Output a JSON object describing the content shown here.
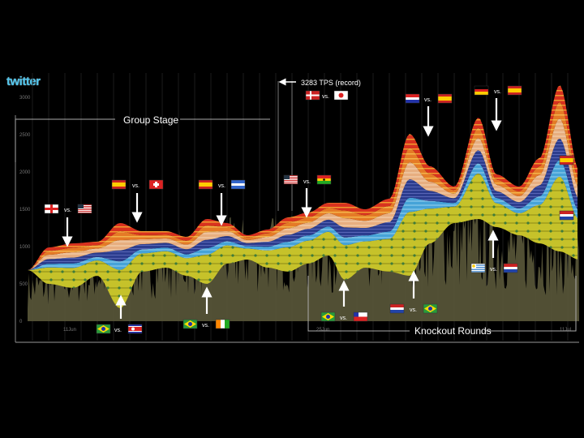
{
  "brand": {
    "logo_text": "twitter"
  },
  "chart_data": {
    "type": "area",
    "title": "",
    "subtitle": "",
    "xlabel": "",
    "ylabel": "",
    "y_ticks": [
      "3000",
      "2500",
      "2000",
      "1500",
      "1000",
      "500",
      "0"
    ],
    "x_ticks": [
      "11Jun",
      "25Jun",
      "11Jul"
    ],
    "ylim": [
      0,
      3000
    ],
    "grid": true,
    "legend": "none",
    "record_note": "3283 TPS (record)",
    "sections": [
      {
        "label": "Group Stage"
      },
      {
        "label": "Knockout Rounds"
      }
    ],
    "vs_label": "vs.",
    "matches": [
      {
        "team_a": "England",
        "team_b": "USA",
        "flag_a": "england",
        "flag_b": "usa"
      },
      {
        "team_a": "Spain",
        "team_b": "Switzerland",
        "flag_a": "spain",
        "flag_b": "switzerland"
      },
      {
        "team_a": "Brazil",
        "team_b": "North Korea",
        "flag_a": "brazil",
        "flag_b": "northkorea"
      },
      {
        "team_a": "Spain",
        "team_b": "Honduras",
        "flag_a": "spain",
        "flag_b": "honduras"
      },
      {
        "team_a": "Brazil",
        "team_b": "Ivory Coast",
        "flag_a": "brazil",
        "flag_b": "ivorycoast"
      },
      {
        "team_a": "Denmark",
        "team_b": "Japan",
        "flag_a": "denmark",
        "flag_b": "japan"
      },
      {
        "team_a": "USA",
        "team_b": "Ghana",
        "flag_a": "usa",
        "flag_b": "ghana"
      },
      {
        "team_a": "Brazil",
        "team_b": "Chile",
        "flag_a": "brazil",
        "flag_b": "chile"
      },
      {
        "team_a": "Paraguay",
        "team_b": "Spain",
        "flag_a": "paraguay",
        "flag_b": "spain"
      },
      {
        "team_a": "Netherlands",
        "team_b": "Brazil",
        "flag_a": "netherlands",
        "flag_b": "brazil"
      },
      {
        "team_a": "Germany",
        "team_b": "Spain",
        "flag_a": "germany",
        "flag_b": "spain"
      },
      {
        "team_a": "Uruguay",
        "team_b": "Netherlands",
        "flag_a": "uruguay",
        "flag_b": "netherlands"
      }
    ],
    "final_flags": [
      "spain",
      "netherlands"
    ],
    "colors": {
      "background": "#000000",
      "noise": "#5c5a3a",
      "brazil": "#c9c32b",
      "red": "#d8321f",
      "orange": "#e8722a",
      "peach": "#e8b27c",
      "blue": "#2e3d8f",
      "sky": "#4aa3d6",
      "text": "#ffffff",
      "axis": "#777777"
    }
  }
}
